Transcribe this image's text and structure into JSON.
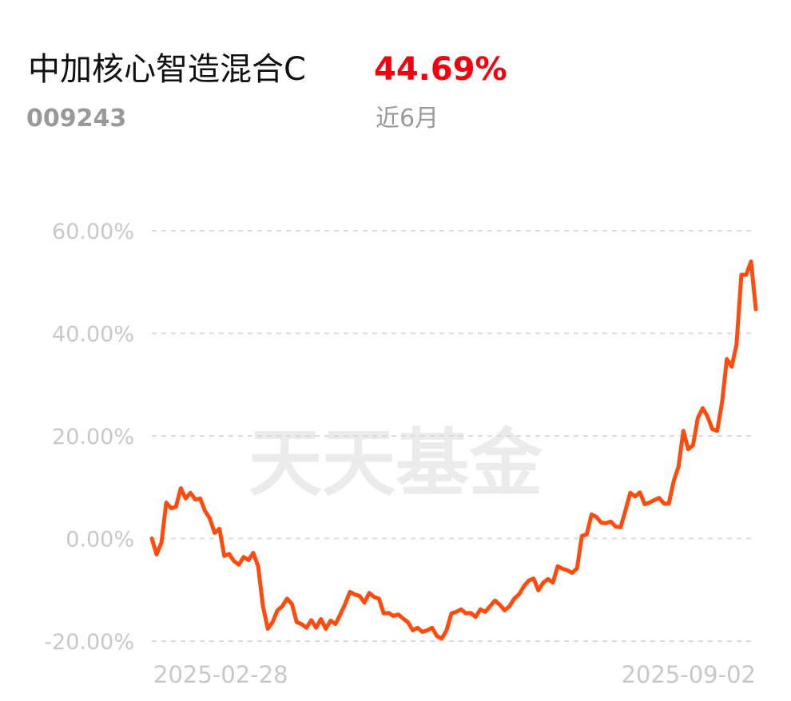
{
  "fund_name": "中加核心智造混合C",
  "return": "44.69%",
  "fund_code": "009243",
  "period": "近6月",
  "chart_data": {
    "type": "line",
    "watermark": "天天基金",
    "color": "#ff4c0e",
    "grid": true,
    "ylim": [
      -20,
      60
    ],
    "yticks": [
      {
        "value": 60,
        "label": "60.00%"
      },
      {
        "value": 40,
        "label": "40.00%"
      },
      {
        "value": 20,
        "label": "20.00%"
      },
      {
        "value": 0,
        "label": "0.00%"
      },
      {
        "value": -20,
        "label": "-20.00%"
      }
    ],
    "categories": [
      "2025-02-28",
      null,
      null,
      null,
      null,
      null,
      null,
      null,
      null,
      null,
      null,
      null,
      null,
      null,
      null,
      null,
      null,
      null,
      null,
      null,
      null,
      null,
      null,
      null,
      null,
      null,
      null,
      null,
      null,
      null,
      null,
      null,
      null,
      null,
      null,
      null,
      null,
      null,
      null,
      null,
      null,
      null,
      null,
      null,
      null,
      null,
      null,
      null,
      null,
      null,
      null,
      null,
      null,
      null,
      null,
      null,
      null,
      null,
      null,
      null,
      null,
      null,
      null,
      null,
      null,
      null,
      null,
      null,
      null,
      null,
      null,
      null,
      null,
      null,
      null,
      null,
      null,
      null,
      null,
      null,
      null,
      null,
      null,
      null,
      null,
      null,
      null,
      null,
      null,
      null,
      null,
      null,
      null,
      null,
      null,
      null,
      null,
      null,
      null,
      null,
      null,
      null,
      null,
      null,
      null,
      null,
      null,
      null,
      null,
      null,
      null,
      null,
      null,
      null,
      null,
      null,
      null,
      null,
      null,
      null,
      null,
      null,
      null,
      null,
      null,
      "2025-09-02"
    ],
    "values": [
      0.0,
      -3.1,
      -0.8,
      7.0,
      5.9,
      6.2,
      9.8,
      7.8,
      8.9,
      7.6,
      7.8,
      5.4,
      3.9,
      1.1,
      1.9,
      -3.4,
      -3.0,
      -4.4,
      -5.1,
      -3.6,
      -4.2,
      -2.8,
      -5.4,
      -13.2,
      -17.6,
      -16.3,
      -14.0,
      -13.2,
      -11.7,
      -12.8,
      -16.3,
      -16.7,
      -17.4,
      -15.9,
      -17.4,
      -15.7,
      -17.6,
      -16.0,
      -16.7,
      -14.8,
      -12.8,
      -10.4,
      -10.9,
      -11.2,
      -12.5,
      -10.6,
      -11.4,
      -11.7,
      -14.6,
      -14.5,
      -15.1,
      -14.8,
      -15.6,
      -16.3,
      -17.9,
      -17.4,
      -18.2,
      -17.9,
      -17.4,
      -19.0,
      -19.5,
      -17.9,
      -14.6,
      -14.3,
      -13.8,
      -14.6,
      -14.5,
      -15.3,
      -13.8,
      -14.3,
      -13.2,
      -12.1,
      -12.9,
      -14.0,
      -13.2,
      -11.7,
      -10.9,
      -9.3,
      -8.2,
      -7.8,
      -10.1,
      -8.6,
      -7.9,
      -8.6,
      -5.4,
      -5.9,
      -6.2,
      -6.7,
      -5.8,
      0.5,
      0.8,
      4.7,
      4.2,
      3.1,
      3.0,
      3.3,
      2.3,
      2.2,
      5.4,
      8.9,
      8.2,
      9.0,
      6.7,
      7.0,
      7.5,
      7.9,
      6.8,
      6.8,
      11.2,
      14.0,
      21.0,
      17.4,
      18.2,
      23.5,
      25.4,
      23.8,
      21.3,
      21.0,
      26.5,
      35.0,
      33.5,
      37.8,
      51.4,
      51.4,
      54.0,
      44.69
    ]
  }
}
